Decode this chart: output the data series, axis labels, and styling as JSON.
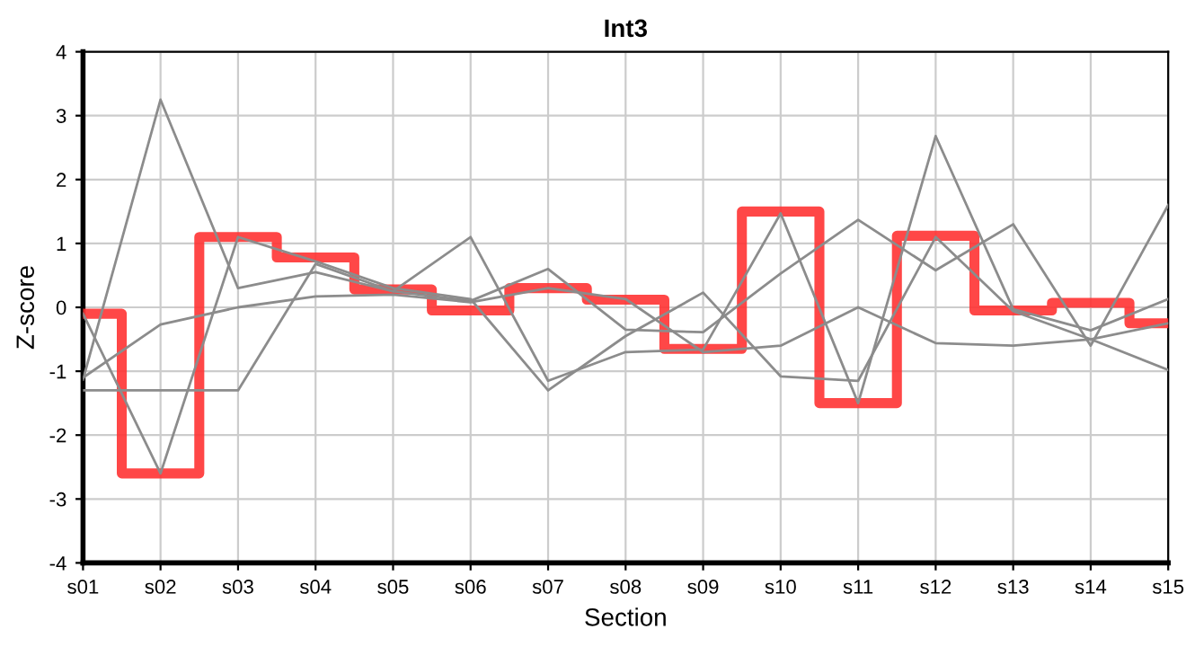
{
  "chart_data": {
    "type": "line",
    "title": "Int3",
    "xlabel": "Section",
    "ylabel": "Z-score",
    "categories": [
      "s01",
      "s02",
      "s03",
      "s04",
      "s05",
      "s06",
      "s07",
      "s08",
      "s09",
      "s10",
      "s11",
      "s12",
      "s13",
      "s14",
      "s15"
    ],
    "series": [
      {
        "color": "#8c8c8c",
        "values": [
          -1.13,
          3.25,
          0.3,
          0.55,
          0.25,
          0.1,
          0.6,
          -0.35,
          -0.39,
          0.53,
          1.37,
          0.58,
          1.3,
          -0.6,
          1.6
        ]
      },
      {
        "color": "#8c8c8c",
        "values": [
          -0.1,
          -2.6,
          1.1,
          0.72,
          0.3,
          0.13,
          -1.3,
          -0.45,
          0.23,
          -1.08,
          -1.15,
          1.1,
          -0.06,
          -0.5,
          -0.98
        ]
      },
      {
        "color": "#8c8c8c",
        "values": [
          -1.3,
          -1.3,
          -1.3,
          0.68,
          0.25,
          1.1,
          -1.15,
          -0.7,
          -0.66,
          1.47,
          -1.5,
          2.68,
          -0.03,
          -0.36,
          0.13
        ]
      },
      {
        "color": "#8c8c8c",
        "values": [
          -1.1,
          -0.27,
          0.0,
          0.17,
          0.2,
          0.08,
          0.3,
          0.13,
          -0.7,
          -0.6,
          0.0,
          -0.56,
          -0.6,
          -0.5,
          -0.25
        ]
      },
      {
        "type": "step",
        "color": "#ff3333",
        "values": [
          -0.1,
          -2.6,
          1.1,
          0.78,
          0.28,
          -0.05,
          0.3,
          0.12,
          -0.65,
          1.5,
          -1.5,
          1.12,
          -0.05,
          0.07,
          -0.25
        ]
      }
    ],
    "ylim": [
      -4,
      4
    ],
    "yticks": [
      -4,
      -3,
      -2,
      -1,
      0,
      1,
      2,
      3,
      4
    ],
    "grid": true,
    "legend": false
  }
}
